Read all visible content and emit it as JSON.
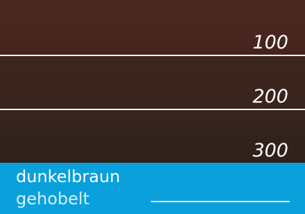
{
  "swatches": [
    {
      "label": "100"
    },
    {
      "label": "200"
    },
    {
      "label": "300"
    }
  ],
  "footer": {
    "color_name": "dunkelbraun",
    "finish": "gehobelt"
  }
}
